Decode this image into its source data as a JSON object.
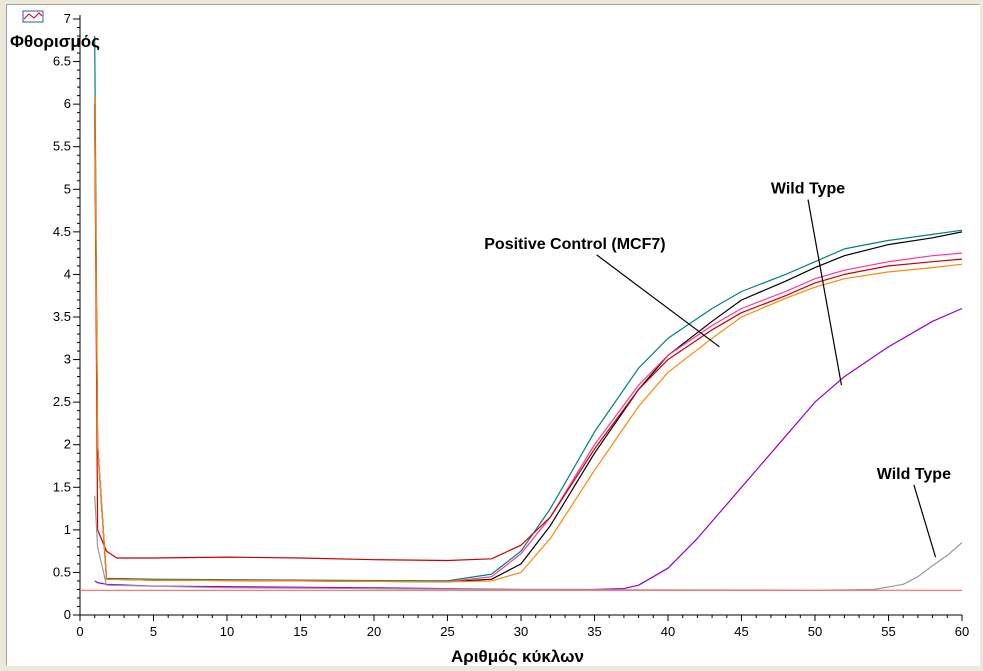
{
  "chart_data": {
    "type": "line",
    "title": "",
    "ylabel": "Φθορισμός",
    "xlabel": "Αριθμός κύκλων",
    "xlim": [
      0,
      60
    ],
    "ylim": [
      0,
      7
    ],
    "grid": false,
    "x_ticks": [
      "0",
      "5",
      "10",
      "15",
      "20",
      "25",
      "30",
      "35",
      "40",
      "45",
      "50",
      "55",
      "60"
    ],
    "y_ticks": [
      "0",
      "0.5",
      "1",
      "1.5",
      "2",
      "2.5",
      "3",
      "3.5",
      "4",
      "4.5",
      "5",
      "5.5",
      "6",
      "6.5",
      "7"
    ],
    "series": [
      {
        "color": "#008080",
        "x": [
          1,
          1.2,
          1.8,
          5,
          15,
          25,
          28,
          30,
          32,
          35,
          38,
          40,
          43,
          45,
          48,
          50,
          52,
          55,
          58,
          60
        ],
        "y": [
          6.8,
          2.0,
          0.43,
          0.42,
          0.41,
          0.4,
          0.48,
          0.75,
          1.25,
          2.15,
          2.9,
          3.25,
          3.6,
          3.8,
          4.0,
          4.15,
          4.3,
          4.4,
          4.47,
          4.52
        ]
      },
      {
        "color": "#000000",
        "x": [
          1,
          1.2,
          1.8,
          5,
          15,
          25,
          28,
          30,
          32,
          35,
          38,
          40,
          43,
          45,
          48,
          50,
          52,
          55,
          58,
          60
        ],
        "y": [
          6.0,
          2.0,
          0.42,
          0.41,
          0.4,
          0.39,
          0.42,
          0.6,
          1.05,
          1.9,
          2.65,
          3.05,
          3.45,
          3.7,
          3.92,
          4.08,
          4.22,
          4.35,
          4.43,
          4.5
        ]
      },
      {
        "color": "#ff3399",
        "x": [
          1,
          1.2,
          1.8,
          5,
          15,
          25,
          28,
          30,
          32,
          35,
          38,
          40,
          43,
          45,
          48,
          50,
          52,
          55,
          58,
          60
        ],
        "y": [
          5.8,
          2.0,
          0.42,
          0.41,
          0.4,
          0.39,
          0.45,
          0.72,
          1.15,
          2.0,
          2.7,
          3.05,
          3.4,
          3.6,
          3.8,
          3.95,
          4.05,
          4.15,
          4.22,
          4.25
        ]
      },
      {
        "color": "#cc0000",
        "x": [
          1,
          1.2,
          1.8,
          2.5,
          5,
          10,
          15,
          20,
          25,
          28,
          30,
          32,
          35,
          38,
          40,
          43,
          45,
          48,
          50,
          52,
          55,
          58,
          60
        ],
        "y": [
          6.0,
          1.0,
          0.75,
          0.67,
          0.67,
          0.68,
          0.67,
          0.65,
          0.64,
          0.66,
          0.82,
          1.15,
          1.95,
          2.65,
          3.0,
          3.35,
          3.55,
          3.75,
          3.9,
          4.0,
          4.1,
          4.15,
          4.18
        ]
      },
      {
        "color": "#ff8800",
        "x": [
          1,
          1.2,
          1.8,
          5,
          15,
          25,
          28,
          30,
          32,
          35,
          38,
          40,
          43,
          45,
          48,
          50,
          52,
          55,
          58,
          60
        ],
        "y": [
          6.1,
          2.0,
          0.42,
          0.41,
          0.4,
          0.39,
          0.4,
          0.5,
          0.9,
          1.7,
          2.45,
          2.85,
          3.25,
          3.5,
          3.72,
          3.85,
          3.95,
          4.03,
          4.08,
          4.12
        ]
      },
      {
        "color": "#9900cc",
        "x": [
          1,
          1.2,
          1.8,
          5,
          20,
          30,
          35,
          37,
          38,
          40,
          42,
          45,
          48,
          50,
          52,
          55,
          58,
          60
        ],
        "y": [
          0.4,
          0.38,
          0.36,
          0.34,
          0.32,
          0.3,
          0.3,
          0.31,
          0.35,
          0.55,
          0.9,
          1.5,
          2.1,
          2.5,
          2.8,
          3.15,
          3.45,
          3.6
        ]
      },
      {
        "color": "#999999",
        "x": [
          1,
          1.2,
          1.8,
          10,
          30,
          50,
          54,
          56,
          57,
          58,
          59,
          60
        ],
        "y": [
          1.4,
          0.8,
          0.35,
          0.32,
          0.3,
          0.29,
          0.3,
          0.36,
          0.45,
          0.58,
          0.7,
          0.85
        ]
      },
      {
        "color": "#ff6666",
        "x": [
          0,
          60
        ],
        "y": [
          0.29,
          0.29
        ]
      }
    ],
    "annotations": [
      {
        "text": "Positive Control (MCF7)",
        "x": 27.5,
        "y": 4.3,
        "arrow_to": [
          43.5,
          3.15
        ]
      },
      {
        "text": "Wild Type",
        "x": 47.0,
        "y": 4.95,
        "arrow_to": [
          51.8,
          2.7
        ]
      },
      {
        "text": "Wild Type",
        "x": 54.2,
        "y": 1.6,
        "arrow_to": [
          58.2,
          0.68
        ]
      }
    ]
  }
}
